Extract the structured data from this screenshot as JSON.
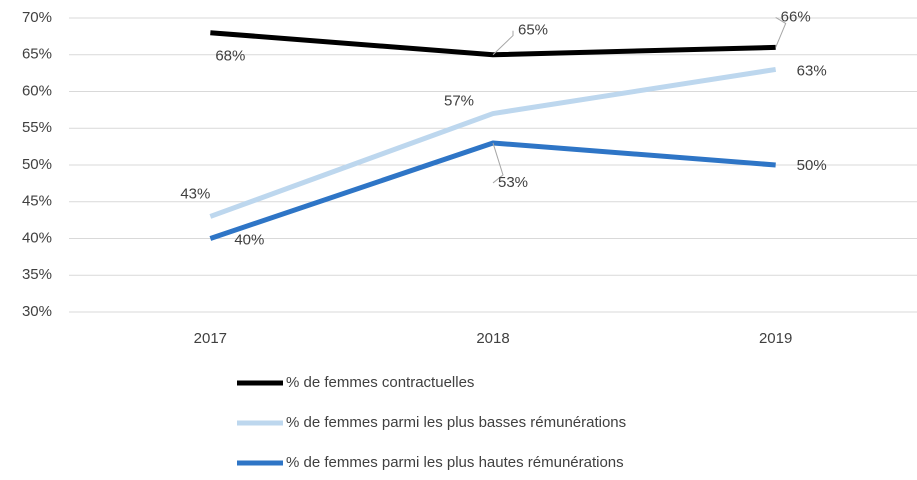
{
  "chart_data": {
    "type": "line",
    "categories": [
      "2017",
      "2018",
      "2019"
    ],
    "series": [
      {
        "name": "% de femmes contractuelles",
        "color": "#000000",
        "values": [
          68,
          65,
          66
        ],
        "value_labels": [
          "68%",
          "65%",
          "66%"
        ]
      },
      {
        "name": "% de femmes parmi les plus basses rémunérations",
        "color": "#bdd7ee",
        "values": [
          43,
          57,
          63
        ],
        "value_labels": [
          "43%",
          "57%",
          "63%"
        ]
      },
      {
        "name": "% de femmes parmi les plus hautes rémunérations",
        "color": "#2e75c6",
        "values": [
          40,
          53,
          50
        ],
        "value_labels": [
          "40%",
          "53%",
          "50%"
        ]
      }
    ],
    "ylim": [
      30,
      70
    ],
    "yticks": [
      {
        "value": 30,
        "label": "30%"
      },
      {
        "value": 35,
        "label": "35%"
      },
      {
        "value": 40,
        "label": "40%"
      },
      {
        "value": 45,
        "label": "45%"
      },
      {
        "value": 50,
        "label": "50%"
      },
      {
        "value": 55,
        "label": "55%"
      },
      {
        "value": 60,
        "label": "60%"
      },
      {
        "value": 65,
        "label": "65%"
      },
      {
        "value": 70,
        "label": "70%"
      }
    ],
    "grid": true
  }
}
